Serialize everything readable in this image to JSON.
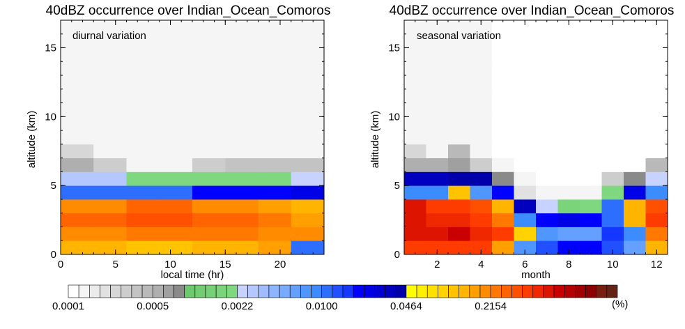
{
  "chart_data": [
    {
      "type": "heatmap",
      "title": "40dBZ occurrence over Indian_Ocean_Comoros",
      "annotation": "diurnal variation",
      "xlabel": "local time (hr)",
      "ylabel": "altitude (km)",
      "xlim": [
        0,
        24
      ],
      "ylim": [
        0,
        17
      ],
      "xticks": [
        0,
        5,
        10,
        15,
        20
      ],
      "yticks": [
        0,
        5,
        10,
        15
      ],
      "x_bin_edges": [
        0,
        3,
        6,
        9,
        12,
        15,
        18,
        21,
        24
      ],
      "y_bin_edges": [
        0,
        1,
        2,
        3,
        4,
        5,
        6,
        7,
        8,
        9,
        10,
        11,
        12,
        13,
        14,
        15,
        16,
        17
      ],
      "colorbar_index": [
        [
          37,
          37,
          36,
          36,
          37,
          37,
          38,
          24
        ],
        [
          39,
          39,
          40,
          40,
          40,
          40,
          39,
          39
        ],
        [
          41,
          41,
          42,
          42,
          41,
          41,
          40,
          38
        ],
        [
          39,
          39,
          41,
          41,
          39,
          39,
          38,
          37
        ],
        [
          24,
          24,
          24,
          24,
          27,
          27,
          27,
          28
        ],
        [
          17,
          17,
          15,
          15,
          15,
          15,
          15,
          16
        ],
        [
          8,
          5,
          1,
          1,
          5,
          6,
          6,
          6
        ],
        [
          4,
          1,
          1,
          1,
          1,
          1,
          1,
          1
        ],
        [
          1,
          1,
          1,
          1,
          1,
          1,
          1,
          1
        ],
        [
          1,
          1,
          1,
          1,
          1,
          1,
          1,
          1
        ],
        [
          1,
          1,
          1,
          1,
          1,
          1,
          1,
          1
        ],
        [
          1,
          1,
          1,
          1,
          1,
          1,
          1,
          1
        ],
        [
          1,
          1,
          1,
          1,
          1,
          1,
          1,
          1
        ],
        [
          1,
          1,
          1,
          1,
          1,
          1,
          1,
          1
        ],
        [
          1,
          1,
          1,
          1,
          1,
          1,
          1,
          1
        ],
        [
          1,
          1,
          1,
          1,
          1,
          1,
          1,
          1
        ],
        [
          1,
          1,
          1,
          1,
          1,
          1,
          1,
          1
        ]
      ]
    },
    {
      "type": "heatmap",
      "title": "40dBZ occurrence over Indian_Ocean_Comoros",
      "annotation": "seasonal variation",
      "xlabel": "month",
      "ylabel": "altitude (km)",
      "xlim": [
        0.5,
        12.5
      ],
      "ylim": [
        0,
        17
      ],
      "xticks": [
        2,
        4,
        6,
        8,
        10,
        12
      ],
      "yticks": [
        0,
        5,
        10,
        15
      ],
      "x_bin_edges": [
        0.5,
        1.5,
        2.5,
        3.5,
        4.5,
        5.5,
        6.5,
        7.5,
        8.5,
        9.5,
        10.5,
        11.5,
        12.5
      ],
      "y_bin_edges": [
        0,
        1,
        2,
        3,
        4,
        5,
        6,
        7,
        8,
        9,
        10,
        11,
        12,
        13,
        14,
        15,
        16,
        17
      ],
      "colorbar_index": [
        [
          43,
          43,
          43,
          43,
          38,
          22,
          25,
          27,
          27,
          25,
          21,
          37
        ],
        [
          45,
          45,
          46,
          44,
          43,
          35,
          22,
          21,
          21,
          26,
          23,
          40
        ],
        [
          45,
          44,
          44,
          43,
          40,
          23,
          27,
          28,
          27,
          24,
          37,
          43
        ],
        [
          45,
          43,
          43,
          42,
          37,
          30,
          16,
          14,
          15,
          24,
          37,
          42
        ],
        [
          23,
          23,
          36,
          22,
          27,
          3,
          1,
          1,
          1,
          15,
          28,
          23
        ],
        [
          30,
          30,
          31,
          31,
          10,
          1,
          0,
          0,
          0,
          5,
          10,
          16
        ],
        [
          8,
          8,
          9,
          5,
          1,
          0,
          0,
          0,
          0,
          0,
          0,
          7
        ],
        [
          4,
          1,
          7,
          1,
          0,
          0,
          0,
          0,
          0,
          0,
          0,
          0
        ],
        [
          1,
          1,
          1,
          1,
          0,
          0,
          0,
          0,
          0,
          0,
          0,
          0
        ],
        [
          1,
          1,
          1,
          1,
          0,
          0,
          0,
          0,
          0,
          0,
          0,
          0
        ],
        [
          1,
          1,
          1,
          1,
          0,
          0,
          0,
          0,
          0,
          0,
          0,
          0
        ],
        [
          1,
          1,
          1,
          1,
          0,
          0,
          0,
          0,
          0,
          0,
          0,
          0
        ],
        [
          1,
          1,
          1,
          1,
          0,
          0,
          0,
          0,
          0,
          0,
          0,
          0
        ],
        [
          1,
          1,
          1,
          1,
          0,
          0,
          0,
          0,
          0,
          0,
          0,
          0
        ],
        [
          1,
          1,
          1,
          1,
          0,
          0,
          0,
          0,
          0,
          0,
          0,
          0
        ],
        [
          1,
          1,
          1,
          1,
          0,
          0,
          0,
          0,
          0,
          0,
          0,
          0
        ],
        [
          1,
          1,
          1,
          1,
          0,
          0,
          0,
          0,
          0,
          0,
          0,
          0
        ]
      ]
    }
  ],
  "colorbar": {
    "unit": "(%)",
    "tick_labels": [
      "0.0001",
      "0.0005",
      "0.0022",
      "0.0100",
      "0.0464",
      "0.2154"
    ],
    "tick_index": [
      0,
      8,
      16,
      24,
      32,
      40
    ],
    "colors": [
      "#ffffff",
      "#f5f5f5",
      "#ebebeb",
      "#e1e1e1",
      "#d7d7d7",
      "#cdcdcd",
      "#c3c3c3",
      "#b9b9b9",
      "#afafaf",
      "#a0a0a0",
      "#8a8a8a",
      "#6ec86e",
      "#72cc72",
      "#76d076",
      "#7ad47a",
      "#7fd87f",
      "#c8d2ff",
      "#b4c8ff",
      "#a0bcff",
      "#8cb4ff",
      "#78aaff",
      "#64a0ff",
      "#5096ff",
      "#3c8cff",
      "#2d6eff",
      "#2050ff",
      "#1438ff",
      "#0000ff",
      "#0000e6",
      "#0000d2",
      "#0000be",
      "#0000aa",
      "#ffff00",
      "#fff000",
      "#ffe100",
      "#ffd200",
      "#ffc300",
      "#ffb400",
      "#ffa000",
      "#ff8c00",
      "#ff7800",
      "#ff6400",
      "#ff5000",
      "#ff3c00",
      "#f02800",
      "#dc1400",
      "#c80000",
      "#b40000",
      "#a00000",
      "#8c0000",
      "#781e10",
      "#642314"
    ]
  }
}
